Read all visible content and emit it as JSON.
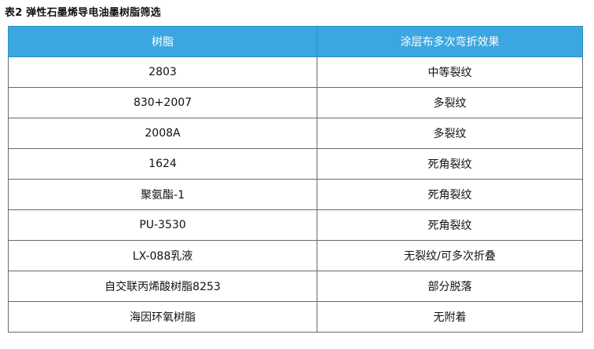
{
  "caption": "表2 弹性石墨烯导电油墨树脂筛选",
  "table": {
    "headers": {
      "resin": "树脂",
      "effect": "涂层布多次弯折效果"
    },
    "rows": [
      {
        "resin": "2803",
        "effect": "中等裂纹"
      },
      {
        "resin": "830+2007",
        "effect": "多裂纹"
      },
      {
        "resin": "2008A",
        "effect": "多裂纹"
      },
      {
        "resin": "1624",
        "effect": "死角裂纹"
      },
      {
        "resin": "聚氨酯-1",
        "effect": "死角裂纹"
      },
      {
        "resin": "PU-3530",
        "effect": "死角裂纹"
      },
      {
        "resin": "LX-088乳液",
        "effect": "无裂纹/可多次折叠"
      },
      {
        "resin": "自交联丙烯酸树脂8253",
        "effect": "部分脱落"
      },
      {
        "resin": "海因环氧树脂",
        "effect": "无附着"
      }
    ]
  },
  "colors": {
    "header_bg": "#3ba7e0",
    "header_text": "#ffffff",
    "border": "#6a6a6a"
  }
}
